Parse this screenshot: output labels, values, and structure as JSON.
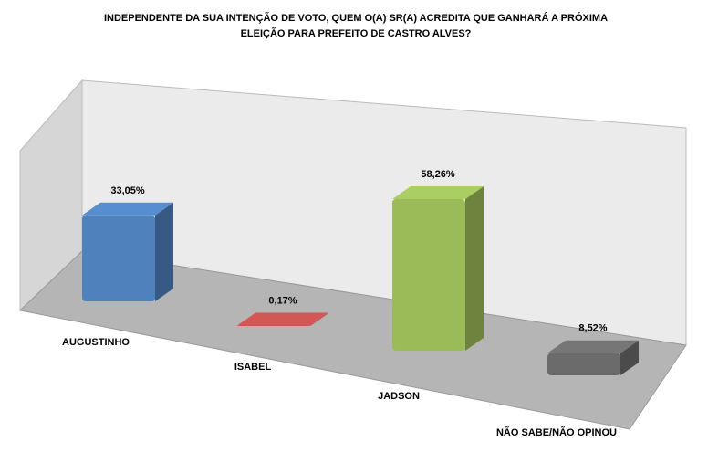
{
  "chart_data": {
    "type": "bar3d",
    "title": "INDEPENDENTE DA SUA INTENÇÃO DE VOTO, QUEM O(A) SR(A) ACREDITA QUE GANHARÁ A PRÓXIMA ELEIÇÃO PARA PREFEITO DE CASTRO ALVES?",
    "categories": [
      "AUGUSTINHO",
      "ISABEL",
      "JADSON",
      "NÃO SABE/NÃO OPINOU"
    ],
    "values": [
      33.05,
      0.17,
      58.26,
      8.52
    ],
    "value_labels": [
      "33,05%",
      "0,17%",
      "58,26%",
      "8,52%"
    ],
    "colors": [
      "#4f81bd",
      "#c0504d",
      "#9bbb59",
      "#6b6b6b"
    ]
  }
}
